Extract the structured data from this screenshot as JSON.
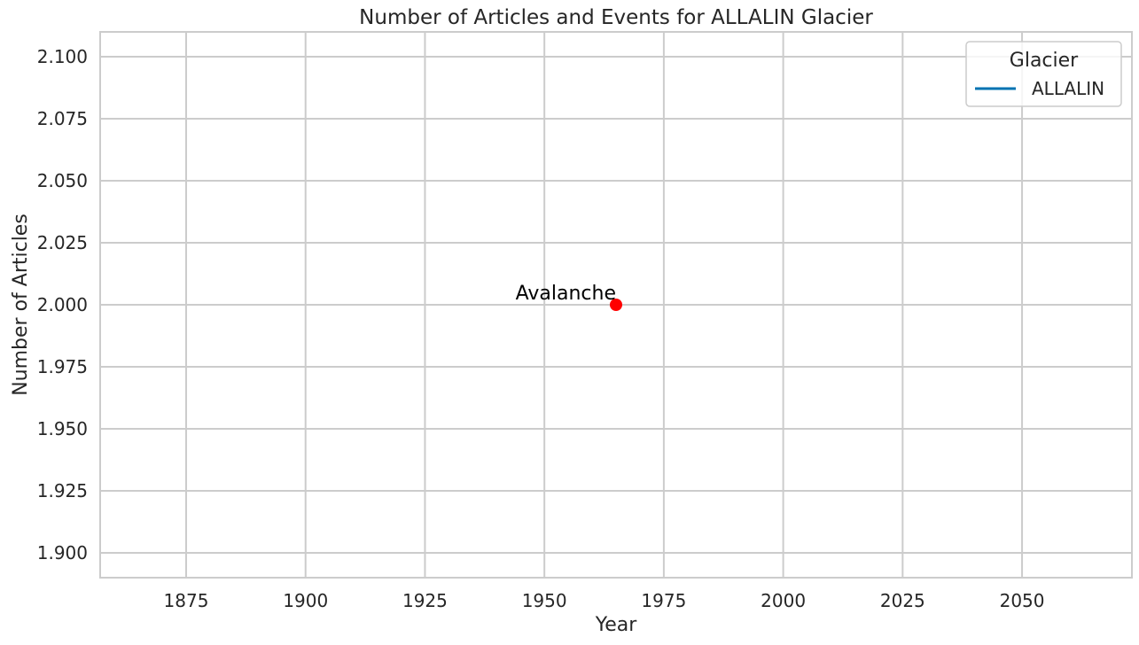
{
  "chart_data": {
    "type": "line",
    "title": "Number of Articles and Events for ALLALIN Glacier",
    "xlabel": "Year",
    "ylabel": "Number of Articles",
    "xlim": [
      1857,
      2073
    ],
    "ylim": [
      1.89,
      2.11
    ],
    "x_ticks": [
      1875,
      1900,
      1925,
      1950,
      1975,
      2000,
      2025,
      2050
    ],
    "y_ticks": [
      1.9,
      1.925,
      1.95,
      1.975,
      2.0,
      2.025,
      2.05,
      2.075,
      2.1
    ],
    "y_tick_labels": [
      "1.900",
      "1.925",
      "1.950",
      "1.975",
      "2.000",
      "2.025",
      "2.050",
      "2.075",
      "2.100"
    ],
    "grid": true,
    "legend": {
      "title": "Glacier",
      "placement": "top-right",
      "entries": [
        {
          "label": "ALLALIN",
          "color": "#0173b2"
        }
      ]
    },
    "series": [
      {
        "name": "ALLALIN",
        "color": "#0173b2",
        "points": [
          {
            "x": 1965,
            "y": 2.0
          }
        ]
      }
    ],
    "events": [
      {
        "x": 1965,
        "y": 2.0,
        "label": "Avalanche",
        "color": "#ff0000"
      }
    ]
  }
}
